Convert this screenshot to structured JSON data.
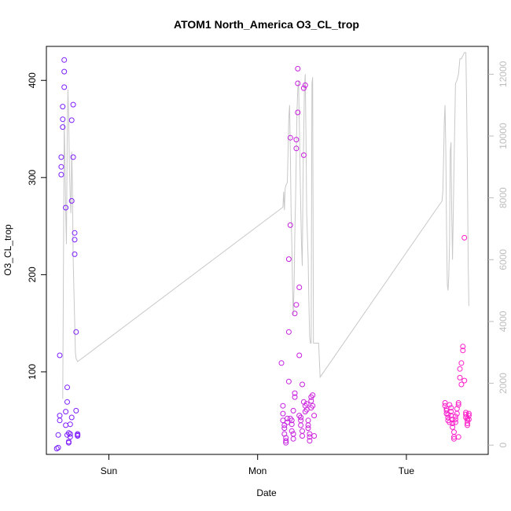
{
  "chart_data": {
    "type": "scatter",
    "title": "ATOM1 North_America O3_CL_trop",
    "xlabel": "Date",
    "ylabel": "O3_CL_trop",
    "x_unit": "days since start of plotted window (Sun 00:00 = 0.40)",
    "x_ticks": [
      {
        "label": "Sun",
        "x": 0.4
      },
      {
        "label": "Mon",
        "x": 1.4
      },
      {
        "label": "Tue",
        "x": 2.4
      }
    ],
    "xlim": [
      -0.02,
      2.95
    ],
    "y_ticks": [
      100,
      200,
      300,
      400
    ],
    "ylim": [
      15,
      435
    ],
    "y2_ticks": [
      0,
      2000,
      4000,
      6000,
      8000,
      10000,
      12000
    ],
    "y2lim": [
      -300,
      12900
    ],
    "grid": false,
    "legend": "none",
    "colors": {
      "gradient_start": "#7a1fff",
      "gradient_end": "#ff1fc8",
      "secondary_line": "#c8c8c8",
      "right_axis": "#bdbdbd"
    },
    "series": [
      {
        "kind": "points",
        "values": [
          [
            0.05,
            21
          ],
          [
            0.06,
            22
          ],
          [
            0.06,
            35
          ],
          [
            0.07,
            50
          ],
          [
            0.07,
            55
          ],
          [
            0.07,
            117
          ],
          [
            0.08,
            303
          ],
          [
            0.08,
            311
          ],
          [
            0.08,
            321
          ],
          [
            0.09,
            352
          ],
          [
            0.09,
            360
          ],
          [
            0.09,
            373
          ],
          [
            0.1,
            409
          ],
          [
            0.1,
            421
          ],
          [
            0.1,
            393
          ],
          [
            0.11,
            269
          ],
          [
            0.11,
            59
          ],
          [
            0.11,
            45
          ],
          [
            0.12,
            84
          ],
          [
            0.12,
            69
          ],
          [
            0.12,
            35
          ],
          [
            0.13,
            27
          ],
          [
            0.13,
            28
          ],
          [
            0.13,
            37
          ],
          [
            0.14,
            36
          ],
          [
            0.14,
            33
          ],
          [
            0.14,
            46
          ],
          [
            0.15,
            53
          ],
          [
            0.15,
            276
          ],
          [
            0.15,
            359
          ],
          [
            0.16,
            375
          ],
          [
            0.16,
            321
          ],
          [
            0.17,
            243
          ],
          [
            0.17,
            236
          ],
          [
            0.17,
            221
          ],
          [
            0.18,
            141
          ],
          [
            0.18,
            60
          ],
          [
            0.19,
            35
          ],
          [
            0.19,
            36
          ],
          [
            0.19,
            34
          ],
          [
            1.56,
            109
          ],
          [
            1.57,
            65
          ],
          [
            1.57,
            57
          ],
          [
            1.57,
            50
          ],
          [
            1.58,
            45
          ],
          [
            1.58,
            42
          ],
          [
            1.58,
            36
          ],
          [
            1.59,
            32
          ],
          [
            1.59,
            29
          ],
          [
            1.59,
            27
          ],
          [
            1.6,
            48
          ],
          [
            1.6,
            52
          ],
          [
            1.61,
            90
          ],
          [
            1.61,
            141
          ],
          [
            1.61,
            216
          ],
          [
            1.62,
            251
          ],
          [
            1.62,
            341
          ],
          [
            1.62,
            52
          ],
          [
            1.63,
            50
          ],
          [
            1.63,
            46
          ],
          [
            1.63,
            39
          ],
          [
            1.64,
            36
          ],
          [
            1.64,
            31
          ],
          [
            1.64,
            60
          ],
          [
            1.65,
            74
          ],
          [
            1.65,
            78
          ],
          [
            1.65,
            160
          ],
          [
            1.66,
            169
          ],
          [
            1.66,
            330
          ],
          [
            1.66,
            339
          ],
          [
            1.67,
            367
          ],
          [
            1.67,
            397
          ],
          [
            1.67,
            412
          ],
          [
            1.68,
            187
          ],
          [
            1.68,
            117
          ],
          [
            1.68,
            55
          ],
          [
            1.69,
            53
          ],
          [
            1.69,
            50
          ],
          [
            1.69,
            45
          ],
          [
            1.7,
            39
          ],
          [
            1.7,
            34
          ],
          [
            1.7,
            87
          ],
          [
            1.71,
            69
          ],
          [
            1.71,
            323
          ],
          [
            1.71,
            392
          ],
          [
            1.72,
            395
          ],
          [
            1.72,
            59
          ],
          [
            1.72,
            65
          ],
          [
            1.73,
            67
          ],
          [
            1.73,
            61
          ],
          [
            1.74,
            50
          ],
          [
            1.74,
            45
          ],
          [
            1.74,
            42
          ],
          [
            1.75,
            29
          ],
          [
            1.75,
            33
          ],
          [
            1.75,
            36
          ],
          [
            1.76,
            63
          ],
          [
            1.76,
            70
          ],
          [
            1.76,
            74
          ],
          [
            1.77,
            76
          ],
          [
            1.77,
            65
          ],
          [
            1.78,
            34
          ],
          [
            1.78,
            55
          ],
          [
            2.66,
            68
          ],
          [
            2.66,
            65
          ],
          [
            2.67,
            62
          ],
          [
            2.67,
            60
          ],
          [
            2.67,
            57
          ],
          [
            2.68,
            56
          ],
          [
            2.68,
            53
          ],
          [
            2.68,
            50
          ],
          [
            2.69,
            48
          ],
          [
            2.69,
            66
          ],
          [
            2.7,
            63
          ],
          [
            2.7,
            59
          ],
          [
            2.7,
            55
          ],
          [
            2.71,
            51
          ],
          [
            2.71,
            47
          ],
          [
            2.71,
            43
          ],
          [
            2.72,
            38
          ],
          [
            2.72,
            33
          ],
          [
            2.72,
            31
          ],
          [
            2.73,
            48
          ],
          [
            2.73,
            51
          ],
          [
            2.73,
            54
          ],
          [
            2.74,
            57
          ],
          [
            2.74,
            62
          ],
          [
            2.75,
            66
          ],
          [
            2.75,
            68
          ],
          [
            2.75,
            33
          ],
          [
            2.76,
            94
          ],
          [
            2.76,
            103
          ],
          [
            2.77,
            87
          ],
          [
            2.77,
            109
          ],
          [
            2.78,
            126
          ],
          [
            2.78,
            122
          ],
          [
            2.79,
            91
          ],
          [
            2.79,
            238
          ],
          [
            2.8,
            56
          ],
          [
            2.8,
            58
          ],
          [
            2.8,
            53
          ],
          [
            2.81,
            50
          ],
          [
            2.81,
            47
          ],
          [
            2.81,
            45
          ],
          [
            2.81,
            52
          ],
          [
            2.82,
            55
          ],
          [
            2.82,
            57
          ],
          [
            2.82,
            51
          ]
        ]
      },
      {
        "kind": "line",
        "axis": "right",
        "values": [
          [
            0.09,
            1500
          ],
          [
            0.1,
            10500
          ],
          [
            0.105,
            9000
          ],
          [
            0.11,
            7500
          ],
          [
            0.115,
            6500
          ],
          [
            0.12,
            10000
          ],
          [
            0.125,
            11500
          ],
          [
            0.13,
            10500
          ],
          [
            0.135,
            9000
          ],
          [
            0.14,
            8000
          ],
          [
            0.145,
            7500
          ],
          [
            0.15,
            9500
          ],
          [
            0.155,
            8500
          ],
          [
            0.16,
            6000
          ],
          [
            0.165,
            5000
          ],
          [
            0.17,
            4000
          ],
          [
            0.175,
            3000
          ],
          [
            0.18,
            2800
          ],
          [
            0.19,
            2700
          ],
          [
            1.57,
            7700
          ],
          [
            1.575,
            8200
          ],
          [
            1.58,
            7600
          ],
          [
            1.585,
            8300
          ],
          [
            1.59,
            8400
          ],
          [
            1.6,
            8500
          ],
          [
            1.605,
            9600
          ],
          [
            1.61,
            10600
          ],
          [
            1.615,
            11000
          ],
          [
            1.62,
            9500
          ],
          [
            1.625,
            7500
          ],
          [
            1.63,
            6500
          ],
          [
            1.635,
            5000
          ],
          [
            1.64,
            4200
          ],
          [
            1.645,
            5200
          ],
          [
            1.65,
            6800
          ],
          [
            1.655,
            8000
          ],
          [
            1.66,
            9500
          ],
          [
            1.665,
            10800
          ],
          [
            1.67,
            11500
          ],
          [
            1.675,
            11800
          ],
          [
            1.68,
            10500
          ],
          [
            1.685,
            9000
          ],
          [
            1.69,
            7600
          ],
          [
            1.695,
            6500
          ],
          [
            1.7,
            5800
          ],
          [
            1.705,
            8500
          ],
          [
            1.71,
            10200
          ],
          [
            1.715,
            11600
          ],
          [
            1.72,
            12000
          ],
          [
            1.725,
            10000
          ],
          [
            1.73,
            7500
          ],
          [
            1.74,
            6000
          ],
          [
            1.745,
            4500
          ],
          [
            1.75,
            3500
          ],
          [
            1.755,
            3300
          ],
          [
            1.76,
            3300
          ],
          [
            1.765,
            11700
          ],
          [
            1.77,
            11900
          ],
          [
            1.775,
            3300
          ],
          [
            1.8,
            3300
          ],
          [
            1.81,
            3300
          ],
          [
            1.82,
            2200
          ],
          [
            2.64,
            7900
          ],
          [
            2.645,
            8200
          ],
          [
            2.65,
            9200
          ],
          [
            2.655,
            10500
          ],
          [
            2.66,
            11000
          ],
          [
            2.665,
            9500
          ],
          [
            2.67,
            7000
          ],
          [
            2.675,
            5200
          ],
          [
            2.68,
            5000
          ],
          [
            2.685,
            5500
          ],
          [
            2.69,
            6500
          ],
          [
            2.695,
            9500
          ],
          [
            2.7,
            9800
          ],
          [
            2.705,
            7500
          ],
          [
            2.71,
            6000
          ],
          [
            2.72,
            9000
          ],
          [
            2.73,
            11700
          ],
          [
            2.74,
            11800
          ],
          [
            2.745,
            11900
          ],
          [
            2.75,
            12000
          ],
          [
            2.76,
            12500
          ],
          [
            2.77,
            12500
          ],
          [
            2.78,
            12600
          ],
          [
            2.79,
            12700
          ],
          [
            2.8,
            12700
          ],
          [
            2.805,
            11000
          ],
          [
            2.81,
            9000
          ],
          [
            2.815,
            6000
          ],
          [
            2.82,
            4500
          ]
        ]
      }
    ]
  }
}
